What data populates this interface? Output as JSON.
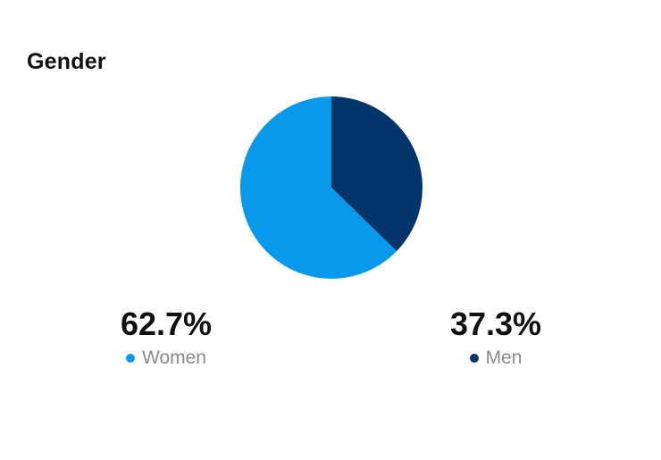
{
  "title": "Gender",
  "chart_data": {
    "type": "pie",
    "title": "Gender",
    "categories": [
      "Women",
      "Men"
    ],
    "values": [
      62.7,
      37.3
    ],
    "value_labels": [
      "62.7%",
      "37.3%"
    ],
    "colors": [
      "#0899ec",
      "#03346a"
    ],
    "legend_position": "bottom",
    "start_angle": "top",
    "direction": "clockwise-men-first"
  }
}
